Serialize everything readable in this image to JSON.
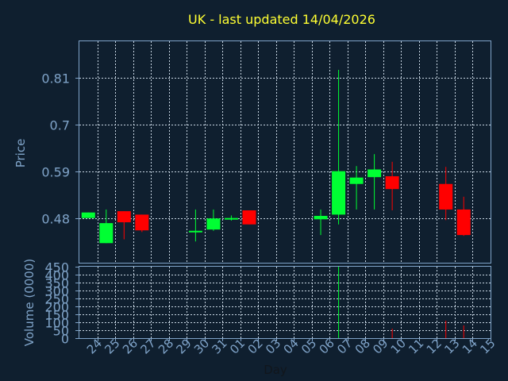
{
  "chart_data": {
    "type": "candlestick",
    "title": "UK - last updated 14/04/2026",
    "xlabel": "Day",
    "price_panel": {
      "ylabel": "Price",
      "yticks": [
        "0.48",
        "0.59",
        "0.7",
        "0.81"
      ],
      "ytick_values": [
        0.48,
        0.59,
        0.7,
        0.81
      ],
      "ylim": [
        0.375,
        0.895
      ],
      "grid": true
    },
    "volume_panel": {
      "ylabel": "Volume (0000)",
      "yticks": [
        "0",
        "50",
        "100",
        "150",
        "200",
        "250",
        "300",
        "350",
        "400",
        "450"
      ],
      "ylim": [
        0,
        450
      ],
      "grid": true
    },
    "x_ticks": [
      "24",
      "25",
      "26",
      "27",
      "28",
      "29",
      "30",
      "31",
      "01",
      "02",
      "03",
      "04",
      "05",
      "06",
      "07",
      "08",
      "09",
      "10",
      "11",
      "12",
      "13",
      "14",
      "15"
    ],
    "candles": [
      {
        "day": "24",
        "open": 0.48,
        "high": 0.493,
        "low": 0.48,
        "close": 0.493,
        "volume": 0
      },
      {
        "day": "25",
        "open": 0.421,
        "high": 0.5,
        "low": 0.421,
        "close": 0.468,
        "volume": 0
      },
      {
        "day": "26",
        "open": 0.496,
        "high": 0.496,
        "low": 0.43,
        "close": 0.47,
        "volume": 0
      },
      {
        "day": "27",
        "open": 0.488,
        "high": 0.488,
        "low": 0.447,
        "close": 0.451,
        "volume": 0
      },
      {
        "day": "30",
        "open": 0.45,
        "high": 0.5,
        "low": 0.425,
        "close": 0.45,
        "volume": 0
      },
      {
        "day": "31",
        "open": 0.453,
        "high": 0.5,
        "low": 0.45,
        "close": 0.479,
        "volume": 0
      },
      {
        "day": "01",
        "open": 0.48,
        "high": 0.486,
        "low": 0.474,
        "close": 0.48,
        "volume": 0
      },
      {
        "day": "02",
        "open": 0.498,
        "high": 0.498,
        "low": 0.465,
        "close": 0.465,
        "volume": 0
      },
      {
        "day": "06",
        "open": 0.477,
        "high": 0.5,
        "low": 0.44,
        "close": 0.485,
        "volume": 0
      },
      {
        "day": "07",
        "open": 0.488,
        "high": 0.828,
        "low": 0.465,
        "close": 0.59,
        "volume": 450
      },
      {
        "day": "08",
        "open": 0.56,
        "high": 0.602,
        "low": 0.5,
        "close": 0.575,
        "volume": 0
      },
      {
        "day": "09",
        "open": 0.576,
        "high": 0.63,
        "low": 0.5,
        "close": 0.594,
        "volume": 0
      },
      {
        "day": "10",
        "open": 0.578,
        "high": 0.612,
        "low": 0.498,
        "close": 0.548,
        "volume": 60
      },
      {
        "day": "13",
        "open": 0.56,
        "high": 0.6,
        "low": 0.475,
        "close": 0.5,
        "volume": 110
      },
      {
        "day": "14",
        "open": 0.5,
        "high": 0.53,
        "low": 0.438,
        "close": 0.44,
        "volume": 80
      }
    ],
    "colors": {
      "background": "#0f1f2f",
      "axis": "#7fa3c8",
      "grid": "#c8d6e3",
      "title": "#ffff33",
      "up": "#00ff33",
      "down": "#ff0000"
    }
  }
}
